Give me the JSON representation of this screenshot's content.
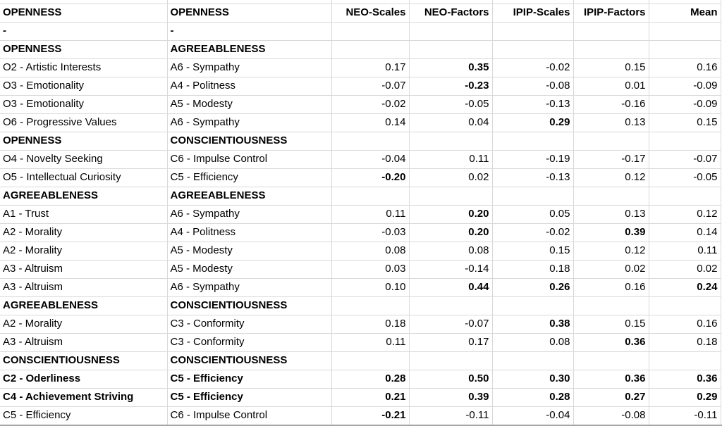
{
  "app": {
    "kind": "spreadsheet-grid"
  },
  "colors": {
    "background": "#ffffff",
    "gridline": "#d9d9d9",
    "text": "#000000",
    "bottom_edge": "#a6a6a6"
  },
  "table": {
    "header": {
      "cells": [
        "OPENNESS",
        "OPENNESS",
        "NEO-Scales",
        "NEO-Factors",
        "IPIP-Scales",
        "IPIP-Factors",
        "Mean"
      ],
      "bold": [
        true,
        true,
        true,
        true,
        true,
        true,
        true
      ]
    },
    "rows": [
      {
        "cells": [
          "-",
          "-",
          "",
          "",
          "",
          "",
          ""
        ],
        "bold": [
          true,
          true,
          false,
          false,
          false,
          false,
          false
        ]
      },
      {
        "cells": [
          "OPENNESS",
          "AGREEABLENESS",
          "",
          "",
          "",
          "",
          ""
        ],
        "bold": [
          true,
          true,
          false,
          false,
          false,
          false,
          false
        ]
      },
      {
        "cells": [
          "O2 - Artistic Interests",
          "A6 - Sympathy",
          "0.17",
          "0.35",
          "-0.02",
          "0.15",
          "0.16"
        ],
        "bold": [
          false,
          false,
          false,
          true,
          false,
          false,
          false
        ]
      },
      {
        "cells": [
          "O3 - Emotionality",
          "A4 - Politness",
          "-0.07",
          "-0.23",
          "-0.08",
          "0.01",
          "-0.09"
        ],
        "bold": [
          false,
          false,
          false,
          true,
          false,
          false,
          false
        ]
      },
      {
        "cells": [
          "O3 - Emotionality",
          "A5 - Modesty",
          "-0.02",
          "-0.05",
          "-0.13",
          "-0.16",
          "-0.09"
        ],
        "bold": [
          false,
          false,
          false,
          false,
          false,
          false,
          false
        ]
      },
      {
        "cells": [
          "O6 - Progressive Values",
          "A6 - Sympathy",
          "0.14",
          "0.04",
          "0.29",
          "0.13",
          "0.15"
        ],
        "bold": [
          false,
          false,
          false,
          false,
          true,
          false,
          false
        ]
      },
      {
        "cells": [
          "OPENNESS",
          "CONSCIENTIOUSNESS",
          "",
          "",
          "",
          "",
          ""
        ],
        "bold": [
          true,
          true,
          false,
          false,
          false,
          false,
          false
        ]
      },
      {
        "cells": [
          "O4 - Novelty Seeking",
          "C6 - Impulse Control",
          "-0.04",
          "0.11",
          "-0.19",
          "-0.17",
          "-0.07"
        ],
        "bold": [
          false,
          false,
          false,
          false,
          false,
          false,
          false
        ]
      },
      {
        "cells": [
          "O5 - Intellectual Curiosity",
          "C5 - Efficiency",
          "-0.20",
          "0.02",
          "-0.13",
          "0.12",
          "-0.05"
        ],
        "bold": [
          false,
          false,
          true,
          false,
          false,
          false,
          false
        ]
      },
      {
        "cells": [
          "AGREEABLENESS",
          "AGREEABLENESS",
          "",
          "",
          "",
          "",
          ""
        ],
        "bold": [
          true,
          true,
          false,
          false,
          false,
          false,
          false
        ]
      },
      {
        "cells": [
          "A1 - Trust",
          "A6 - Sympathy",
          "0.11",
          "0.20",
          "0.05",
          "0.13",
          "0.12"
        ],
        "bold": [
          false,
          false,
          false,
          true,
          false,
          false,
          false
        ]
      },
      {
        "cells": [
          "A2 - Morality",
          "A4 - Politness",
          "-0.03",
          "0.20",
          "-0.02",
          "0.39",
          "0.14"
        ],
        "bold": [
          false,
          false,
          false,
          true,
          false,
          true,
          false
        ]
      },
      {
        "cells": [
          "A2 - Morality",
          "A5 - Modesty",
          "0.08",
          "0.08",
          "0.15",
          "0.12",
          "0.11"
        ],
        "bold": [
          false,
          false,
          false,
          false,
          false,
          false,
          false
        ]
      },
      {
        "cells": [
          "A3 - Altruism",
          "A5 - Modesty",
          "0.03",
          "-0.14",
          "0.18",
          "0.02",
          "0.02"
        ],
        "bold": [
          false,
          false,
          false,
          false,
          false,
          false,
          false
        ]
      },
      {
        "cells": [
          "A3 - Altruism",
          "A6 - Sympathy",
          "0.10",
          "0.44",
          "0.26",
          "0.16",
          "0.24"
        ],
        "bold": [
          false,
          false,
          false,
          true,
          true,
          false,
          true
        ]
      },
      {
        "cells": [
          "AGREEABLENESS",
          "CONSCIENTIOUSNESS",
          "",
          "",
          "",
          "",
          ""
        ],
        "bold": [
          true,
          true,
          false,
          false,
          false,
          false,
          false
        ]
      },
      {
        "cells": [
          "A2 - Morality",
          "C3 - Conformity",
          "0.18",
          "-0.07",
          "0.38",
          "0.15",
          "0.16"
        ],
        "bold": [
          false,
          false,
          false,
          false,
          true,
          false,
          false
        ]
      },
      {
        "cells": [
          "A3 - Altruism",
          "C3 - Conformity",
          "0.11",
          "0.17",
          "0.08",
          "0.36",
          "0.18"
        ],
        "bold": [
          false,
          false,
          false,
          false,
          false,
          true,
          false
        ]
      },
      {
        "cells": [
          "CONSCIENTIOUSNESS",
          "CONSCIENTIOUSNESS",
          "",
          "",
          "",
          "",
          ""
        ],
        "bold": [
          true,
          true,
          false,
          false,
          false,
          false,
          false
        ]
      },
      {
        "cells": [
          "C2 - Oderliness",
          "C5 - Efficiency",
          "0.28",
          "0.50",
          "0.30",
          "0.36",
          "0.36"
        ],
        "bold": [
          true,
          true,
          true,
          true,
          true,
          true,
          true
        ]
      },
      {
        "cells": [
          "C4 - Achievement Striving",
          "C5 - Efficiency",
          "0.21",
          "0.39",
          "0.28",
          "0.27",
          "0.29"
        ],
        "bold": [
          true,
          true,
          true,
          true,
          true,
          true,
          true
        ]
      },
      {
        "cells": [
          "C5 - Efficiency",
          "C6 - Impulse Control",
          "-0.21",
          "-0.11",
          "-0.04",
          "-0.08",
          "-0.11"
        ],
        "bold": [
          false,
          false,
          true,
          false,
          false,
          false,
          false
        ]
      }
    ]
  }
}
